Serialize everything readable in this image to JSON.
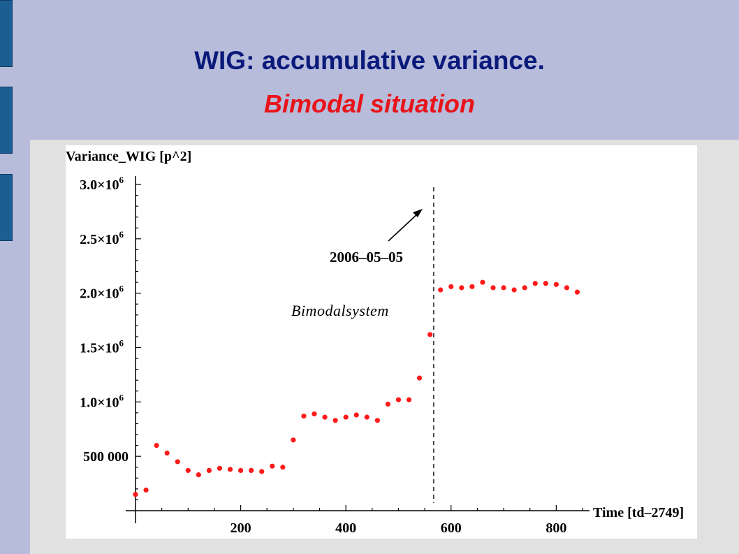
{
  "slide": {
    "title": "WIG: accumulative variance.",
    "subtitle": "Bimodal situation"
  },
  "chart_data": {
    "type": "scatter",
    "ylabel": "Variance_WIG [p^2]",
    "xlabel": "Time [td–2749]",
    "xlim": [
      0,
      850
    ],
    "ylim": [
      0,
      3000000
    ],
    "x_ticks": [
      {
        "value": 200,
        "label": "200"
      },
      {
        "value": 400,
        "label": "400"
      },
      {
        "value": 600,
        "label": "600"
      },
      {
        "value": 800,
        "label": "800"
      }
    ],
    "y_ticks": [
      {
        "value": 500000,
        "label": "500 000"
      },
      {
        "value": 1000000,
        "label": "1.0×10",
        "exp": "6"
      },
      {
        "value": 1500000,
        "label": "1.5×10",
        "exp": "6"
      },
      {
        "value": 2000000,
        "label": "2.0×10",
        "exp": "6"
      },
      {
        "value": 2500000,
        "label": "2.5×10",
        "exp": "6"
      },
      {
        "value": 3000000,
        "label": "3.0×10",
        "exp": "6"
      }
    ],
    "points": [
      {
        "x": 0,
        "y": 150000
      },
      {
        "x": 20,
        "y": 190000
      },
      {
        "x": 40,
        "y": 600000
      },
      {
        "x": 60,
        "y": 530000
      },
      {
        "x": 80,
        "y": 450000
      },
      {
        "x": 100,
        "y": 370000
      },
      {
        "x": 120,
        "y": 330000
      },
      {
        "x": 140,
        "y": 370000
      },
      {
        "x": 160,
        "y": 390000
      },
      {
        "x": 180,
        "y": 380000
      },
      {
        "x": 200,
        "y": 370000
      },
      {
        "x": 220,
        "y": 370000
      },
      {
        "x": 240,
        "y": 360000
      },
      {
        "x": 260,
        "y": 410000
      },
      {
        "x": 280,
        "y": 400000
      },
      {
        "x": 300,
        "y": 650000
      },
      {
        "x": 320,
        "y": 870000
      },
      {
        "x": 340,
        "y": 890000
      },
      {
        "x": 360,
        "y": 860000
      },
      {
        "x": 380,
        "y": 830000
      },
      {
        "x": 400,
        "y": 860000
      },
      {
        "x": 420,
        "y": 880000
      },
      {
        "x": 440,
        "y": 860000
      },
      {
        "x": 460,
        "y": 830000
      },
      {
        "x": 480,
        "y": 980000
      },
      {
        "x": 500,
        "y": 1020000
      },
      {
        "x": 520,
        "y": 1020000
      },
      {
        "x": 540,
        "y": 1220000
      },
      {
        "x": 560,
        "y": 1620000
      },
      {
        "x": 580,
        "y": 2030000
      },
      {
        "x": 600,
        "y": 2060000
      },
      {
        "x": 620,
        "y": 2050000
      },
      {
        "x": 640,
        "y": 2060000
      },
      {
        "x": 660,
        "y": 2100000
      },
      {
        "x": 680,
        "y": 2050000
      },
      {
        "x": 700,
        "y": 2050000
      },
      {
        "x": 720,
        "y": 2030000
      },
      {
        "x": 740,
        "y": 2050000
      },
      {
        "x": 760,
        "y": 2090000
      },
      {
        "x": 780,
        "y": 2090000
      },
      {
        "x": 800,
        "y": 2080000
      },
      {
        "x": 820,
        "y": 2050000
      },
      {
        "x": 840,
        "y": 2010000
      }
    ],
    "vline_x": 567,
    "annotation_date": "2006–05–05",
    "annotation_label": "Bimodalsystem",
    "point_color": "#ff1a1a",
    "grid": false
  }
}
